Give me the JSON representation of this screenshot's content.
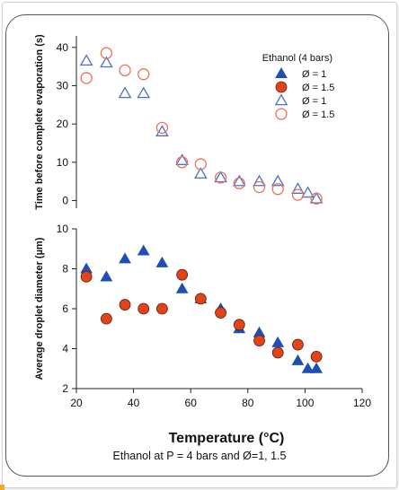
{
  "caption": "Ethanol at P = 4 bars and Ø=1, 1.5",
  "chart_data": [
    {
      "type": "scatter",
      "ylabel": "Time before complete evaporation (s)",
      "ylim": [
        -2,
        43
      ],
      "yticks": [
        0,
        10,
        20,
        30,
        40
      ],
      "xlim": [
        20,
        120
      ],
      "legend": {
        "title": "Ethanol (4 bars)",
        "placement": "top-right",
        "entries": [
          {
            "label": "Ø = 1",
            "marker": "triangle-filled",
            "color": "#1f4fb4"
          },
          {
            "label": "Ø = 1.5",
            "marker": "circle-filled",
            "color": "#e04418"
          },
          {
            "label": "Ø = 1",
            "marker": "triangle-open",
            "color": "#4a72c8"
          },
          {
            "label": "Ø = 1.5",
            "marker": "circle-open",
            "color": "#e8735a"
          }
        ]
      },
      "series": [
        {
          "marker": "triangle-open",
          "color": "#4a72c8",
          "x": [
            23.5,
            30.5,
            37,
            43.5,
            50,
            57,
            63.5,
            70.5,
            77,
            84,
            90.5,
            97.5,
            101,
            104
          ],
          "y": [
            36.5,
            36,
            28,
            28,
            18,
            10.5,
            7,
            6,
            5,
            5,
            5,
            3,
            2,
            0.5
          ]
        },
        {
          "marker": "circle-open",
          "color": "#e8735a",
          "x": [
            23.5,
            30.5,
            37,
            43.5,
            50,
            57,
            63.5,
            70.5,
            77,
            84,
            90.5,
            97.5,
            104
          ],
          "y": [
            32,
            38.5,
            34,
            33,
            19,
            10,
            9.5,
            6,
            4.5,
            3.5,
            3,
            1.5,
            0.5
          ]
        }
      ]
    },
    {
      "type": "scatter",
      "ylabel": "Average droplet diameter (µm)",
      "xlabel": "Temperature (°C)",
      "ylim": [
        2,
        10
      ],
      "yticks": [
        2,
        4,
        6,
        8,
        10
      ],
      "xlim": [
        20,
        120
      ],
      "xticks": [
        20,
        40,
        60,
        80,
        100,
        120
      ],
      "series": [
        {
          "marker": "triangle-filled",
          "color": "#1f4fb4",
          "x": [
            23.5,
            30.5,
            37,
            43.5,
            50,
            57,
            63.5,
            70.5,
            77,
            84,
            90.5,
            97.5,
            101,
            104
          ],
          "y": [
            8.0,
            7.6,
            8.5,
            8.9,
            8.3,
            7.0,
            6.5,
            6.0,
            5.0,
            4.8,
            4.3,
            3.4,
            3.0,
            3.0
          ]
        },
        {
          "marker": "circle-filled",
          "color": "#e04418",
          "x": [
            23.5,
            30.5,
            37,
            43.5,
            50,
            57,
            63.5,
            70.5,
            77,
            84,
            90.5,
            97.5,
            104
          ],
          "y": [
            7.6,
            5.5,
            6.2,
            6.0,
            6.0,
            7.7,
            6.5,
            5.8,
            5.2,
            4.4,
            3.8,
            4.2,
            3.6
          ]
        }
      ]
    }
  ]
}
